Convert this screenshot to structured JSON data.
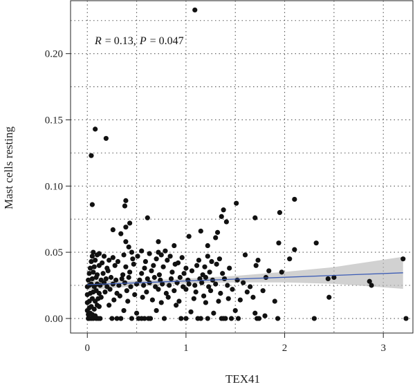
{
  "chart_data": {
    "type": "scatter",
    "xlabel": "TEX41",
    "ylabel": "Mast cells resting",
    "annotation": {
      "R_label": "R",
      "R_value": "= 0.13,",
      "P_label": "P",
      "P_value": "= 0.047"
    },
    "xlim": [
      -0.17,
      3.3
    ],
    "ylim": [
      -0.011,
      0.24
    ],
    "x_ticks": [
      0,
      1,
      2,
      3
    ],
    "x_tick_labels": [
      "0",
      "1",
      "2",
      "3"
    ],
    "y_ticks": [
      0.0,
      0.05,
      0.1,
      0.15,
      0.2
    ],
    "y_tick_labels": [
      "0.00",
      "0.05",
      "0.10",
      "0.15",
      "0.20"
    ],
    "grid": true,
    "fit_line": {
      "x0": 0.0,
      "y0": 0.0255,
      "x1": 3.2,
      "y1": 0.0345
    },
    "confidence_band": [
      {
        "x": 0.0,
        "lo": 0.0213,
        "hi": 0.029
      },
      {
        "x": 0.5,
        "lo": 0.0245,
        "hi": 0.0285
      },
      {
        "x": 1.0,
        "lo": 0.0264,
        "hi": 0.0301
      },
      {
        "x": 1.5,
        "lo": 0.0272,
        "hi": 0.0322
      },
      {
        "x": 2.0,
        "lo": 0.0272,
        "hi": 0.0352
      },
      {
        "x": 2.5,
        "lo": 0.0262,
        "hi": 0.0388
      },
      {
        "x": 3.2,
        "lo": 0.0224,
        "hi": 0.0466
      }
    ],
    "points": [
      [
        0.01,
        0.0
      ],
      [
        0.02,
        0.0
      ],
      [
        0.04,
        0.0
      ],
      [
        0.06,
        0.0
      ],
      [
        0.09,
        0.0
      ],
      [
        0.11,
        0.0
      ],
      [
        0.13,
        0.0
      ],
      [
        0.25,
        0.0
      ],
      [
        0.3,
        0.0
      ],
      [
        0.34,
        0.0
      ],
      [
        0.45,
        0.0
      ],
      [
        0.52,
        0.0
      ],
      [
        0.55,
        0.0
      ],
      [
        0.58,
        0.0
      ],
      [
        0.62,
        0.0
      ],
      [
        0.64,
        0.0
      ],
      [
        0.78,
        0.0
      ],
      [
        0.95,
        0.0
      ],
      [
        1.0,
        0.0
      ],
      [
        1.12,
        0.0
      ],
      [
        1.15,
        0.0
      ],
      [
        1.22,
        0.0
      ],
      [
        1.36,
        0.0
      ],
      [
        1.38,
        0.0
      ],
      [
        1.4,
        0.0
      ],
      [
        1.46,
        0.0
      ],
      [
        1.53,
        0.0
      ],
      [
        1.72,
        0.0
      ],
      [
        1.74,
        0.0
      ],
      [
        1.93,
        0.0
      ],
      [
        2.3,
        0.0
      ],
      [
        3.23,
        0.0
      ],
      [
        0.01,
        0.003
      ],
      [
        0.03,
        0.004
      ],
      [
        0.05,
        0.003
      ],
      [
        0.08,
        0.002
      ],
      [
        0.0,
        0.006
      ],
      [
        0.02,
        0.008
      ],
      [
        0.04,
        0.009
      ],
      [
        0.07,
        0.007
      ],
      [
        0.1,
        0.01
      ],
      [
        0.12,
        0.009
      ],
      [
        0.22,
        0.01
      ],
      [
        0.37,
        0.006
      ],
      [
        0.5,
        0.004
      ],
      [
        0.7,
        0.006
      ],
      [
        0.9,
        0.01
      ],
      [
        1.05,
        0.005
      ],
      [
        1.2,
        0.012
      ],
      [
        1.28,
        0.004
      ],
      [
        1.5,
        0.006
      ],
      [
        1.7,
        0.004
      ],
      [
        1.8,
        0.002
      ],
      [
        0.0,
        0.012
      ],
      [
        0.02,
        0.013
      ],
      [
        0.05,
        0.015
      ],
      [
        0.08,
        0.013
      ],
      [
        0.11,
        0.015
      ],
      [
        0.14,
        0.016
      ],
      [
        0.27,
        0.014
      ],
      [
        0.33,
        0.017
      ],
      [
        0.41,
        0.013
      ],
      [
        0.56,
        0.016
      ],
      [
        0.66,
        0.014
      ],
      [
        0.75,
        0.012
      ],
      [
        0.82,
        0.016
      ],
      [
        0.93,
        0.013
      ],
      [
        1.08,
        0.015
      ],
      [
        1.18,
        0.017
      ],
      [
        1.33,
        0.013
      ],
      [
        1.43,
        0.015
      ],
      [
        1.55,
        0.014
      ],
      [
        1.68,
        0.016
      ],
      [
        1.9,
        0.013
      ],
      [
        2.45,
        0.016
      ],
      [
        0.0,
        0.018
      ],
      [
        0.03,
        0.019
      ],
      [
        0.06,
        0.02
      ],
      [
        0.09,
        0.021
      ],
      [
        0.12,
        0.019
      ],
      [
        0.18,
        0.02
      ],
      [
        0.23,
        0.022
      ],
      [
        0.3,
        0.019
      ],
      [
        0.4,
        0.021
      ],
      [
        0.48,
        0.018
      ],
      [
        0.6,
        0.02
      ],
      [
        0.72,
        0.022
      ],
      [
        0.8,
        0.019
      ],
      [
        0.88,
        0.021
      ],
      [
        1.0,
        0.022
      ],
      [
        1.1,
        0.02
      ],
      [
        1.25,
        0.021
      ],
      [
        1.35,
        0.019
      ],
      [
        1.47,
        0.022
      ],
      [
        1.62,
        0.02
      ],
      [
        1.78,
        0.021
      ],
      [
        0.0,
        0.024
      ],
      [
        0.02,
        0.025
      ],
      [
        0.04,
        0.026
      ],
      [
        0.07,
        0.024
      ],
      [
        0.1,
        0.026
      ],
      [
        0.13,
        0.025
      ],
      [
        0.17,
        0.027
      ],
      [
        0.2,
        0.024
      ],
      [
        0.26,
        0.026
      ],
      [
        0.32,
        0.025
      ],
      [
        0.38,
        0.027
      ],
      [
        0.44,
        0.024
      ],
      [
        0.5,
        0.026
      ],
      [
        0.57,
        0.025
      ],
      [
        0.63,
        0.027
      ],
      [
        0.69,
        0.024
      ],
      [
        0.76,
        0.026
      ],
      [
        0.83,
        0.025
      ],
      [
        0.91,
        0.027
      ],
      [
        0.97,
        0.024
      ],
      [
        1.03,
        0.026
      ],
      [
        1.09,
        0.025
      ],
      [
        1.16,
        0.027
      ],
      [
        1.23,
        0.024
      ],
      [
        1.3,
        0.026
      ],
      [
        1.42,
        0.025
      ],
      [
        1.58,
        0.027
      ],
      [
        1.65,
        0.024
      ],
      [
        2.88,
        0.025
      ],
      [
        2.86,
        0.028
      ],
      [
        0.01,
        0.029
      ],
      [
        0.05,
        0.03
      ],
      [
        0.09,
        0.031
      ],
      [
        0.14,
        0.029
      ],
      [
        0.19,
        0.03
      ],
      [
        0.24,
        0.031
      ],
      [
        0.29,
        0.029
      ],
      [
        0.35,
        0.03
      ],
      [
        0.42,
        0.031
      ],
      [
        0.53,
        0.029
      ],
      [
        0.61,
        0.03
      ],
      [
        0.68,
        0.031
      ],
      [
        0.74,
        0.029
      ],
      [
        0.85,
        0.03
      ],
      [
        0.94,
        0.031
      ],
      [
        1.02,
        0.029
      ],
      [
        1.14,
        0.03
      ],
      [
        1.2,
        0.031
      ],
      [
        1.27,
        0.029
      ],
      [
        1.39,
        0.03
      ],
      [
        1.52,
        0.029
      ],
      [
        1.81,
        0.031
      ],
      [
        2.44,
        0.03
      ],
      [
        2.5,
        0.031
      ],
      [
        0.02,
        0.034
      ],
      [
        0.06,
        0.035
      ],
      [
        0.1,
        0.033
      ],
      [
        0.16,
        0.034
      ],
      [
        0.21,
        0.036
      ],
      [
        0.36,
        0.033
      ],
      [
        0.43,
        0.035
      ],
      [
        0.55,
        0.034
      ],
      [
        0.65,
        0.036
      ],
      [
        0.73,
        0.033
      ],
      [
        0.86,
        0.035
      ],
      [
        0.98,
        0.034
      ],
      [
        1.06,
        0.036
      ],
      [
        1.17,
        0.033
      ],
      [
        1.24,
        0.035
      ],
      [
        1.37,
        0.034
      ],
      [
        1.84,
        0.036
      ],
      [
        1.97,
        0.035
      ],
      [
        0.03,
        0.038
      ],
      [
        0.07,
        0.039
      ],
      [
        0.12,
        0.04
      ],
      [
        0.2,
        0.038
      ],
      [
        0.28,
        0.04
      ],
      [
        0.39,
        0.039
      ],
      [
        0.47,
        0.041
      ],
      [
        0.58,
        0.038
      ],
      [
        0.67,
        0.04
      ],
      [
        0.77,
        0.039
      ],
      [
        0.89,
        0.041
      ],
      [
        1.0,
        0.038
      ],
      [
        1.11,
        0.04
      ],
      [
        1.19,
        0.039
      ],
      [
        1.31,
        0.041
      ],
      [
        1.44,
        0.038
      ],
      [
        1.71,
        0.04
      ],
      [
        0.04,
        0.043
      ],
      [
        0.08,
        0.044
      ],
      [
        0.15,
        0.042
      ],
      [
        0.22,
        0.044
      ],
      [
        0.31,
        0.043
      ],
      [
        0.46,
        0.045
      ],
      [
        0.59,
        0.043
      ],
      [
        0.7,
        0.045
      ],
      [
        0.81,
        0.044
      ],
      [
        0.92,
        0.042
      ],
      [
        1.13,
        0.044
      ],
      [
        1.26,
        0.043
      ],
      [
        1.34,
        0.045
      ],
      [
        1.73,
        0.044
      ],
      [
        2.05,
        0.045
      ],
      [
        3.2,
        0.045
      ],
      [
        0.05,
        0.047
      ],
      [
        0.1,
        0.048
      ],
      [
        0.17,
        0.047
      ],
      [
        0.26,
        0.046
      ],
      [
        0.37,
        0.048
      ],
      [
        0.51,
        0.047
      ],
      [
        0.63,
        0.049
      ],
      [
        0.75,
        0.048
      ],
      [
        0.84,
        0.047
      ],
      [
        0.96,
        0.046
      ],
      [
        1.22,
        0.047
      ],
      [
        1.6,
        0.048
      ],
      [
        0.06,
        0.05
      ],
      [
        0.12,
        0.049
      ],
      [
        0.45,
        0.05
      ],
      [
        0.55,
        0.051
      ],
      [
        0.72,
        0.05
      ],
      [
        0.79,
        0.051
      ],
      [
        2.1,
        0.052
      ],
      [
        0.42,
        0.054
      ],
      [
        0.39,
        0.058
      ],
      [
        0.72,
        0.058
      ],
      [
        1.03,
        0.062
      ],
      [
        0.34,
        0.064
      ],
      [
        0.88,
        0.055
      ],
      [
        1.22,
        0.055
      ],
      [
        1.3,
        0.061
      ],
      [
        1.94,
        0.057
      ],
      [
        2.32,
        0.057
      ],
      [
        0.39,
        0.069
      ],
      [
        0.43,
        0.072
      ],
      [
        0.26,
        0.067
      ],
      [
        1.32,
        0.065
      ],
      [
        1.15,
        0.066
      ],
      [
        1.7,
        0.076
      ],
      [
        1.36,
        0.077
      ],
      [
        1.38,
        0.082
      ],
      [
        1.41,
        0.073
      ],
      [
        0.61,
        0.076
      ],
      [
        0.38,
        0.085
      ],
      [
        0.39,
        0.089
      ],
      [
        1.51,
        0.087
      ],
      [
        1.95,
        0.08
      ],
      [
        2.1,
        0.09
      ],
      [
        0.05,
        0.086
      ],
      [
        0.04,
        0.123
      ],
      [
        0.08,
        0.143
      ],
      [
        0.19,
        0.136
      ],
      [
        1.09,
        0.233
      ]
    ]
  }
}
